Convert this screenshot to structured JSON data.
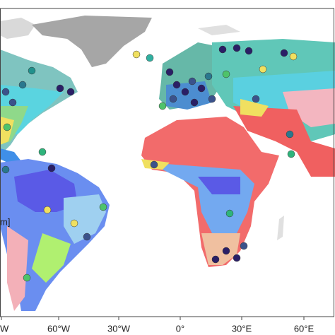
{
  "axis_labels": [
    "W",
    "60°W",
    "30°W",
    "0°",
    "30°E",
    "60°E"
  ],
  "legend_fragment": "m]"
}
